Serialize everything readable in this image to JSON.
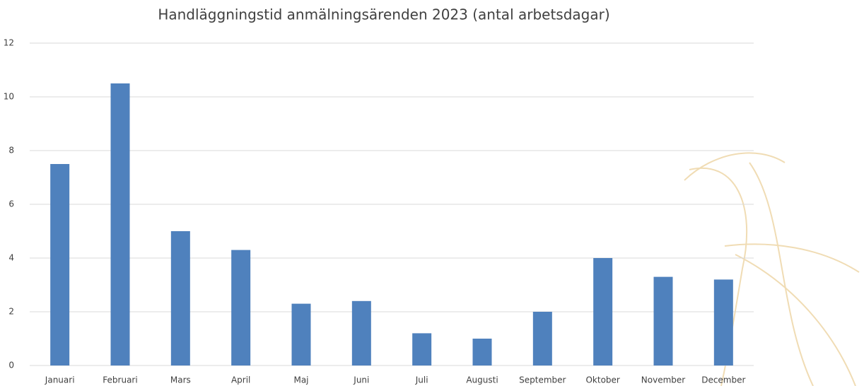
{
  "chart_data": {
    "type": "bar",
    "title": "Handläggningstid anmälningsärenden 2023 (antal arbetsdagar)",
    "categories": [
      "Januari",
      "Februari",
      "Mars",
      "April",
      "Maj",
      "Juni",
      "Juli",
      "Augusti",
      "September",
      "Oktober",
      "November",
      "December"
    ],
    "values": [
      7.5,
      10.5,
      5.0,
      4.3,
      2.3,
      2.4,
      1.2,
      1.0,
      2.0,
      4.0,
      3.3,
      3.2
    ],
    "color": "#4f81bd",
    "ylim": [
      0,
      12
    ],
    "yticks": [
      0,
      2,
      4,
      6,
      8,
      10,
      12
    ],
    "grid": true
  }
}
